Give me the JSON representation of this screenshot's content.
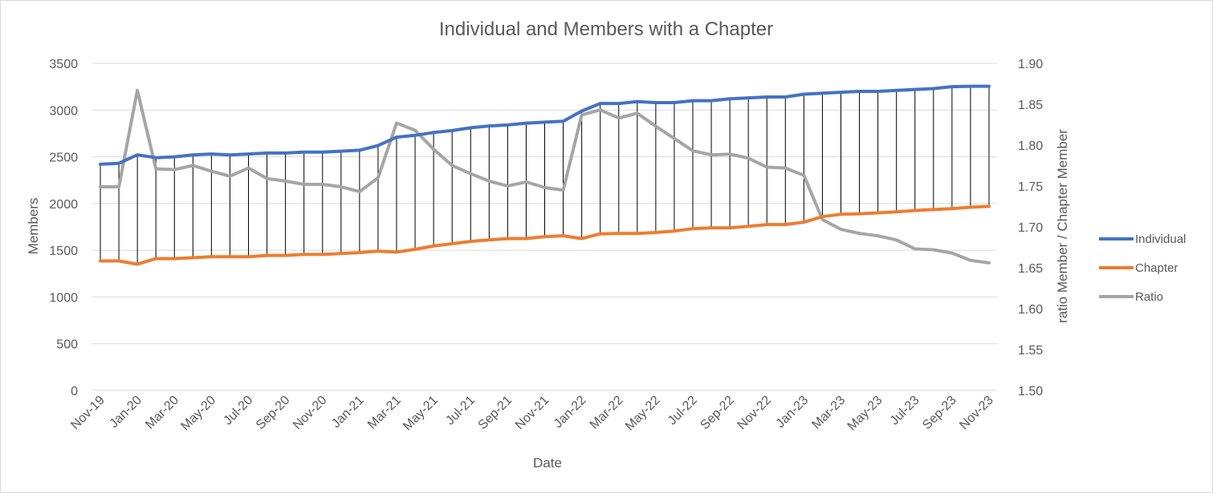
{
  "chart_data": {
    "type": "line",
    "title": "Individual and Members with a Chapter",
    "xlabel": "Date",
    "ylabel": "Members",
    "y2label": "ratio Member / Chapter Member",
    "ylim": [
      0,
      3500
    ],
    "y_ticks": [
      0,
      500,
      1000,
      1500,
      2000,
      2500,
      3000,
      3500
    ],
    "y2lim": [
      1.5,
      1.9
    ],
    "y2_ticks": [
      "1.50",
      "1.55",
      "1.60",
      "1.65",
      "1.70",
      "1.75",
      "1.80",
      "1.85",
      "1.90"
    ],
    "grid": true,
    "high_low_lines": true,
    "legend_position": "right",
    "categories": [
      "Nov-19",
      "Dec-19",
      "Jan-20",
      "Feb-20",
      "Mar-20",
      "Apr-20",
      "May-20",
      "Jun-20",
      "Jul-20",
      "Aug-20",
      "Sep-20",
      "Oct-20",
      "Nov-20",
      "Dec-20",
      "Jan-21",
      "Feb-21",
      "Mar-21",
      "Apr-21",
      "May-21",
      "Jun-21",
      "Jul-21",
      "Aug-21",
      "Sep-21",
      "Oct-21",
      "Nov-21",
      "Dec-21",
      "Jan-22",
      "Feb-22",
      "Mar-22",
      "Apr-22",
      "May-22",
      "Jun-22",
      "Jul-22",
      "Aug-22",
      "Sep-22",
      "Oct-22",
      "Nov-22",
      "Dec-22",
      "Jan-23",
      "Feb-23",
      "Mar-23",
      "Apr-23",
      "May-23",
      "Jun-23",
      "Jul-23",
      "Aug-23",
      "Sep-23",
      "Oct-23",
      "Nov-23"
    ],
    "tick_labels": [
      "Nov-19",
      "Jan-20",
      "Mar-20",
      "May-20",
      "Jul-20",
      "Sep-20",
      "Nov-20",
      "Jan-21",
      "Mar-21",
      "May-21",
      "Jul-21",
      "Sep-21",
      "Nov-21",
      "Jan-22",
      "Mar-22",
      "May-22",
      "Jul-22",
      "Sep-22",
      "Nov-22",
      "Jan-23",
      "Mar-23",
      "May-23",
      "Jul-23",
      "Sep-23",
      "Nov-23"
    ],
    "series": [
      {
        "name": "Individual",
        "axis": "left",
        "color": "#4472c4",
        "values": [
          2420,
          2430,
          2520,
          2490,
          2500,
          2520,
          2530,
          2520,
          2530,
          2540,
          2540,
          2550,
          2550,
          2560,
          2570,
          2620,
          2710,
          2730,
          2760,
          2780,
          2810,
          2830,
          2840,
          2860,
          2870,
          2880,
          2990,
          3070,
          3070,
          3090,
          3080,
          3080,
          3100,
          3100,
          3120,
          3130,
          3140,
          3140,
          3170,
          3180,
          3190,
          3200,
          3200,
          3210,
          3220,
          3230,
          3250,
          3255,
          3255
        ]
      },
      {
        "name": "Chapter",
        "axis": "left",
        "color": "#ed7d31",
        "values": [
          1385,
          1385,
          1350,
          1410,
          1410,
          1420,
          1430,
          1430,
          1430,
          1445,
          1445,
          1455,
          1455,
          1465,
          1475,
          1490,
          1480,
          1510,
          1545,
          1570,
          1595,
          1610,
          1625,
          1625,
          1645,
          1655,
          1625,
          1675,
          1680,
          1680,
          1690,
          1705,
          1730,
          1740,
          1740,
          1755,
          1775,
          1775,
          1800,
          1860,
          1885,
          1890,
          1900,
          1910,
          1925,
          1935,
          1945,
          1960,
          1970
        ]
      },
      {
        "name": "Ratio",
        "axis": "right",
        "color": "#a5a5a5",
        "values": [
          1.749,
          1.749,
          1.867,
          1.771,
          1.77,
          1.775,
          1.768,
          1.762,
          1.772,
          1.759,
          1.756,
          1.752,
          1.752,
          1.749,
          1.743,
          1.76,
          1.827,
          1.818,
          1.795,
          1.775,
          1.765,
          1.756,
          1.75,
          1.755,
          1.748,
          1.745,
          1.837,
          1.843,
          1.833,
          1.839,
          1.823,
          1.808,
          1.793,
          1.788,
          1.789,
          1.784,
          1.773,
          1.772,
          1.763,
          1.709,
          1.697,
          1.692,
          1.689,
          1.684,
          1.673,
          1.672,
          1.668,
          1.659,
          1.656
        ]
      }
    ]
  }
}
